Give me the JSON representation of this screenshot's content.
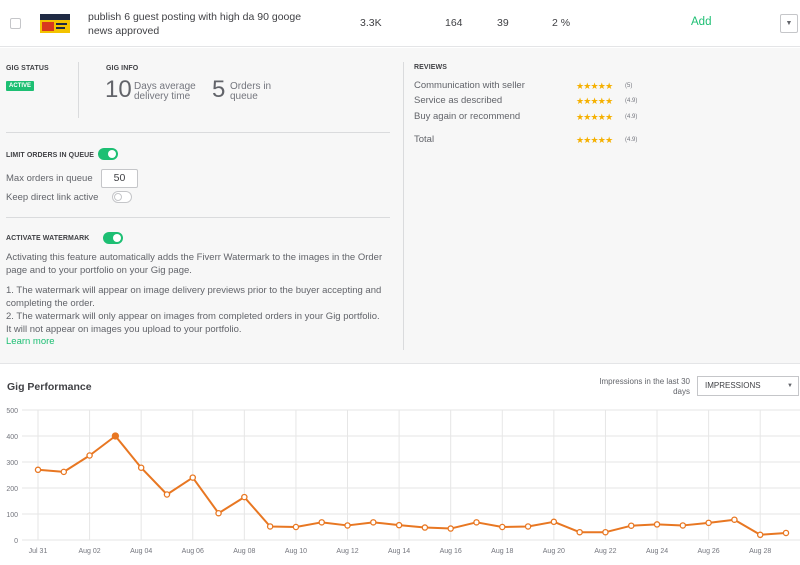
{
  "gig": {
    "title": "publish 6 guest posting with high da 90 googe news approved",
    "impressions": "3.3K",
    "clicks": "164",
    "orders": "39",
    "conversion": "2 %",
    "add_label": "Add"
  },
  "status": {
    "label": "GIG STATUS",
    "badge": "ACTIVE",
    "badge_color": "#1dbf73"
  },
  "info": {
    "label": "GIG INFO",
    "days_value": "10",
    "days_label": "Days average delivery time",
    "orders_value": "5",
    "orders_label": "Orders in queue"
  },
  "limit": {
    "label": "LIMIT ORDERS IN QUEUE",
    "max_label": "Max orders in queue",
    "max_value": "50",
    "direct_link_label": "Keep direct link active"
  },
  "watermark": {
    "label": "ACTIVATE WATERMARK",
    "description": "Activating this feature automatically adds the Fiverr Watermark to the images in the Order page and to your portfolio on your Gig page.",
    "point1": "1. The watermark will appear on image delivery previews prior to the buyer accepting and completing the order.",
    "point2": "2. The watermark will only appear on images from completed orders in your Gig portfolio. It will not appear on images you upload to your portfolio.",
    "learn_more": "Learn more"
  },
  "reviews": {
    "label": "REVIEWS",
    "items": [
      {
        "name": "Communication with seller",
        "score": "(5)"
      },
      {
        "name": "Service as described",
        "score": "(4.9)"
      },
      {
        "name": "Buy again or recommend",
        "score": "(4.9)"
      }
    ],
    "total": {
      "name": "Total",
      "score": "(4.9)"
    },
    "star_color": "#f5b000"
  },
  "performance": {
    "title": "Gig Performance",
    "period_label": "Impressions in the last 30 days",
    "metric_select": "IMPRESSIONS"
  },
  "chart_data": {
    "type": "line",
    "x": [
      "Jul 31",
      "Aug 01",
      "Aug 02",
      "Aug 03",
      "Aug 04",
      "Aug 05",
      "Aug 06",
      "Aug 07",
      "Aug 08",
      "Aug 09",
      "Aug 10",
      "Aug 11",
      "Aug 12",
      "Aug 13",
      "Aug 14",
      "Aug 15",
      "Aug 16",
      "Aug 17",
      "Aug 18",
      "Aug 19",
      "Aug 20",
      "Aug 21",
      "Aug 22",
      "Aug 23",
      "Aug 24",
      "Aug 25",
      "Aug 26",
      "Aug 27",
      "Aug 28",
      "Aug 29"
    ],
    "tick_labels": [
      "Jul 31",
      "Aug 02",
      "Aug 04",
      "Aug 06",
      "Aug 08",
      "Aug 10",
      "Aug 12",
      "Aug 14",
      "Aug 16",
      "Aug 18",
      "Aug 20",
      "Aug 22",
      "Aug 24",
      "Aug 26",
      "Aug 28"
    ],
    "values": [
      270,
      262,
      325,
      400,
      278,
      175,
      240,
      103,
      165,
      52,
      50,
      68,
      56,
      68,
      57,
      48,
      44,
      68,
      50,
      52,
      70,
      30,
      30,
      55,
      60,
      56,
      66,
      78,
      20,
      27
    ],
    "highlight_index": 3,
    "ylim": [
      0,
      500
    ],
    "yticks": [
      0,
      100,
      200,
      300,
      400,
      500
    ],
    "color": "#e87722",
    "grid": true
  }
}
